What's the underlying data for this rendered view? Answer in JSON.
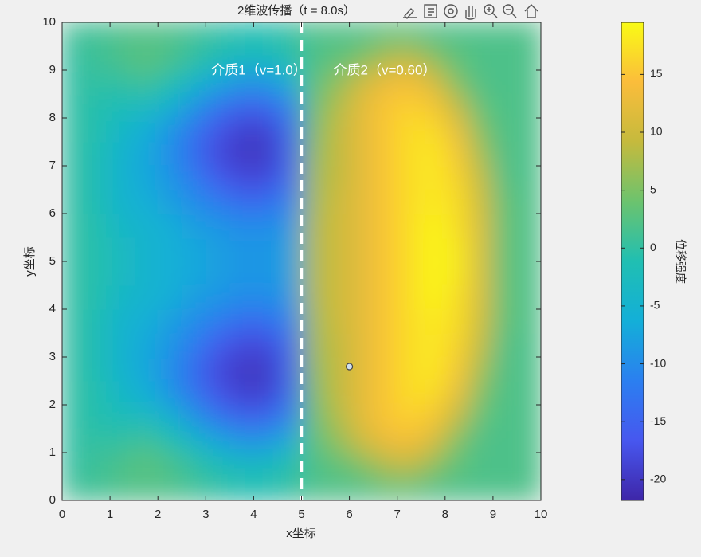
{
  "chart_data": {
    "type": "heatmap",
    "title": "2维波传播（t = 8.0s）",
    "x_label": "x坐标",
    "y_label": "y坐标",
    "colorbar_label": "位移强度",
    "annotations": [
      "介质1（v=1.0）",
      "介质2（v=0.60）"
    ],
    "interface_x": 5,
    "marker": {
      "x": 6,
      "y": 2.8
    },
    "xlim": [
      0,
      10
    ],
    "ylim": [
      0,
      10
    ],
    "xticks": [
      0,
      1,
      2,
      3,
      4,
      5,
      6,
      7,
      8,
      9,
      10
    ],
    "yticks": [
      0,
      1,
      2,
      3,
      4,
      5,
      6,
      7,
      8,
      9,
      10
    ],
    "clim": [
      -21.8,
      19.5
    ],
    "colorbar_ticks": [
      -20,
      -15,
      -10,
      -5,
      0,
      5,
      10,
      15
    ],
    "colormap": [
      "#3e26a8",
      "#4757ef",
      "#2b7ff0",
      "#13afd8",
      "#20bfb2",
      "#6cc36e",
      "#c5ba3d",
      "#fbbd3b",
      "#f9fb15"
    ],
    "x": [
      0.25,
      0.75,
      1.25,
      1.75,
      2.25,
      2.75,
      3.25,
      3.75,
      4.25,
      4.75,
      5.25,
      5.75,
      6.25,
      6.75,
      7.25,
      7.75,
      8.25,
      8.75,
      9.25,
      9.75
    ],
    "y": [
      0.25,
      0.75,
      1.25,
      1.75,
      2.25,
      2.75,
      3.25,
      3.75,
      4.25,
      4.75,
      5.25,
      5.75,
      6.25,
      6.75,
      7.25,
      7.75,
      8.25,
      8.75,
      9.25,
      9.75
    ],
    "z": [
      [
        1,
        1,
        2,
        2,
        2,
        1,
        0,
        -1,
        -1,
        0,
        2,
        2,
        2,
        3,
        3,
        2,
        2,
        2,
        2,
        2
      ],
      [
        0,
        1,
        2,
        3,
        2,
        0,
        -2,
        -3,
        -3,
        -1,
        2,
        3,
        5,
        8,
        9,
        6,
        3,
        2,
        2,
        2
      ],
      [
        0,
        0,
        0,
        1,
        -1,
        -4,
        -7,
        -9,
        -9,
        -6,
        3,
        6,
        10,
        13,
        14,
        11,
        5,
        2,
        2,
        2
      ],
      [
        0,
        -1,
        -2,
        -3,
        -5,
        -9,
        -13,
        -15,
        -15,
        -11,
        4,
        8,
        12,
        15,
        16,
        15,
        9,
        3,
        2,
        2
      ],
      [
        0,
        -1,
        -4,
        -6,
        -9,
        -13,
        -17,
        -19,
        -19,
        -14,
        5,
        9,
        12,
        15,
        17,
        17,
        13,
        5,
        2,
        2
      ],
      [
        0,
        -2,
        -5,
        -7,
        -10,
        -14,
        -18,
        -20,
        -20,
        -15,
        6,
        9,
        12,
        15,
        17,
        18,
        15,
        7,
        2,
        2
      ],
      [
        0,
        -2,
        -5,
        -7,
        -9,
        -12,
        -16,
        -18,
        -18,
        -14,
        7,
        9,
        12,
        15,
        17,
        18,
        16,
        9,
        2,
        2
      ],
      [
        0,
        -2,
        -5,
        -6,
        -8,
        -10,
        -12,
        -14,
        -14,
        -11,
        7,
        10,
        12,
        15,
        17,
        18,
        17,
        10,
        3,
        2
      ],
      [
        0,
        -1,
        -4,
        -5,
        -6,
        -8,
        -9,
        -10,
        -10,
        -9,
        8,
        10,
        12,
        15,
        17,
        19,
        17,
        11,
        3,
        2
      ],
      [
        0,
        -1,
        -3,
        -5,
        -6,
        -7,
        -8,
        -9,
        -9,
        -8,
        8,
        10,
        12,
        15,
        17,
        19,
        18,
        11,
        3,
        2
      ],
      [
        0,
        -1,
        -3,
        -5,
        -6,
        -7,
        -8,
        -9,
        -9,
        -8,
        8,
        10,
        12,
        15,
        17,
        19,
        18,
        11,
        3,
        2
      ],
      [
        0,
        -1,
        -4,
        -5,
        -6,
        -8,
        -9,
        -10,
        -10,
        -9,
        8,
        10,
        12,
        15,
        17,
        19,
        17,
        11,
        3,
        2
      ],
      [
        0,
        -2,
        -5,
        -6,
        -8,
        -10,
        -12,
        -14,
        -14,
        -11,
        7,
        10,
        12,
        15,
        17,
        18,
        17,
        10,
        3,
        2
      ],
      [
        0,
        -2,
        -5,
        -7,
        -9,
        -12,
        -16,
        -18,
        -18,
        -14,
        7,
        9,
        12,
        15,
        17,
        18,
        16,
        9,
        2,
        2
      ],
      [
        0,
        -2,
        -5,
        -7,
        -10,
        -14,
        -18,
        -20,
        -20,
        -15,
        6,
        9,
        12,
        15,
        17,
        18,
        15,
        7,
        2,
        2
      ],
      [
        0,
        -1,
        -4,
        -6,
        -9,
        -13,
        -17,
        -19,
        -19,
        -14,
        5,
        9,
        12,
        15,
        17,
        17,
        13,
        5,
        2,
        2
      ],
      [
        0,
        -1,
        -2,
        -3,
        -5,
        -9,
        -13,
        -15,
        -15,
        -11,
        4,
        8,
        12,
        15,
        16,
        15,
        9,
        3,
        2,
        2
      ],
      [
        0,
        0,
        0,
        1,
        -1,
        -4,
        -7,
        -9,
        -9,
        -6,
        3,
        6,
        10,
        13,
        14,
        11,
        5,
        2,
        2,
        2
      ],
      [
        0,
        1,
        2,
        3,
        2,
        0,
        -2,
        -3,
        -3,
        -1,
        2,
        3,
        5,
        8,
        9,
        6,
        3,
        2,
        2,
        2
      ],
      [
        1,
        1,
        2,
        2,
        2,
        1,
        0,
        -1,
        -1,
        0,
        2,
        2,
        2,
        3,
        3,
        2,
        2,
        2,
        2,
        2
      ]
    ]
  }
}
